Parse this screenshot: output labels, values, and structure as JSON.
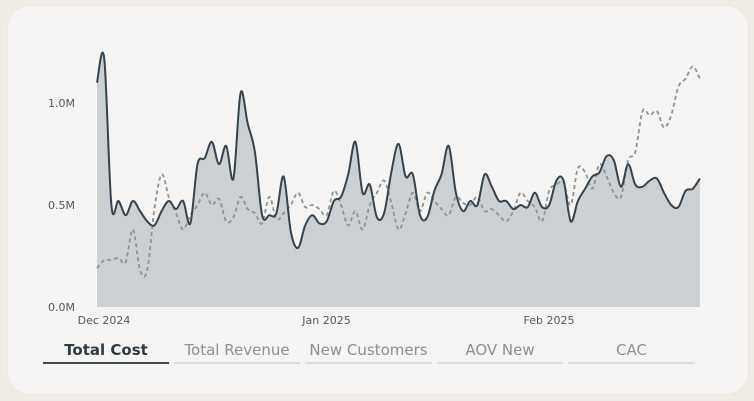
{
  "chart_data": {
    "type": "area",
    "title": "",
    "xlabel": "",
    "ylabel": "",
    "x_start": "2024-12-01",
    "x_end": "2025-03-01",
    "x_ticks": [
      {
        "date": "2024-12-01",
        "label": "Dec 2024"
      },
      {
        "date": "2025-01-01",
        "label": "Jan 2025"
      },
      {
        "date": "2025-02-01",
        "label": "Feb 2025"
      }
    ],
    "ylim": [
      0,
      1270000
    ],
    "y_ticks": [
      {
        "value": 0,
        "label": "0.0M"
      },
      {
        "value": 500000,
        "label": "0.5M"
      },
      {
        "value": 1000000,
        "label": "1.0M"
      }
    ],
    "grid": false,
    "series": [
      {
        "name": "",
        "style": "area-solid",
        "color": "#34444f",
        "fill": "#cdd0d3",
        "points": [
          [
            "2024-12-01",
            1100000
          ],
          [
            "2024-12-02",
            1220000
          ],
          [
            "2024-12-03",
            500000
          ],
          [
            "2024-12-04",
            520000
          ],
          [
            "2024-12-05",
            450000
          ],
          [
            "2024-12-06",
            520000
          ],
          [
            "2024-12-07",
            470000
          ],
          [
            "2024-12-08",
            420000
          ],
          [
            "2024-12-09",
            400000
          ],
          [
            "2024-12-10",
            470000
          ],
          [
            "2024-12-11",
            520000
          ],
          [
            "2024-12-12",
            480000
          ],
          [
            "2024-12-13",
            520000
          ],
          [
            "2024-12-14",
            410000
          ],
          [
            "2024-12-15",
            700000
          ],
          [
            "2024-12-16",
            730000
          ],
          [
            "2024-12-17",
            810000
          ],
          [
            "2024-12-18",
            700000
          ],
          [
            "2024-12-19",
            790000
          ],
          [
            "2024-12-20",
            630000
          ],
          [
            "2024-12-21",
            1050000
          ],
          [
            "2024-12-22",
            900000
          ],
          [
            "2024-12-23",
            760000
          ],
          [
            "2024-12-24",
            450000
          ],
          [
            "2024-12-25",
            450000
          ],
          [
            "2024-12-26",
            460000
          ],
          [
            "2024-12-27",
            640000
          ],
          [
            "2024-12-28",
            370000
          ],
          [
            "2024-12-29",
            290000
          ],
          [
            "2024-12-30",
            400000
          ],
          [
            "2024-12-31",
            450000
          ],
          [
            "2025-01-01",
            410000
          ],
          [
            "2025-01-02",
            420000
          ],
          [
            "2025-01-03",
            520000
          ],
          [
            "2025-01-04",
            540000
          ],
          [
            "2025-01-05",
            650000
          ],
          [
            "2025-01-06",
            810000
          ],
          [
            "2025-01-07",
            560000
          ],
          [
            "2025-01-08",
            600000
          ],
          [
            "2025-01-09",
            440000
          ],
          [
            "2025-01-10",
            460000
          ],
          [
            "2025-01-11",
            660000
          ],
          [
            "2025-01-12",
            800000
          ],
          [
            "2025-01-13",
            640000
          ],
          [
            "2025-01-14",
            650000
          ],
          [
            "2025-01-15",
            450000
          ],
          [
            "2025-01-16",
            440000
          ],
          [
            "2025-01-17",
            570000
          ],
          [
            "2025-01-18",
            650000
          ],
          [
            "2025-01-19",
            790000
          ],
          [
            "2025-01-20",
            560000
          ],
          [
            "2025-01-21",
            470000
          ],
          [
            "2025-01-22",
            520000
          ],
          [
            "2025-01-23",
            500000
          ],
          [
            "2025-01-24",
            650000
          ],
          [
            "2025-01-25",
            590000
          ],
          [
            "2025-01-26",
            520000
          ],
          [
            "2025-01-27",
            520000
          ],
          [
            "2025-01-28",
            480000
          ],
          [
            "2025-01-29",
            500000
          ],
          [
            "2025-01-30",
            490000
          ],
          [
            "2025-01-31",
            560000
          ],
          [
            "2025-02-01",
            490000
          ],
          [
            "2025-02-02",
            500000
          ],
          [
            "2025-02-03",
            620000
          ],
          [
            "2025-02-04",
            620000
          ],
          [
            "2025-02-05",
            420000
          ],
          [
            "2025-02-06",
            520000
          ],
          [
            "2025-02-07",
            580000
          ],
          [
            "2025-02-08",
            640000
          ],
          [
            "2025-02-09",
            660000
          ],
          [
            "2025-02-10",
            740000
          ],
          [
            "2025-02-11",
            720000
          ],
          [
            "2025-02-12",
            590000
          ],
          [
            "2025-02-13",
            700000
          ],
          [
            "2025-02-14",
            600000
          ],
          [
            "2025-02-15",
            590000
          ],
          [
            "2025-02-16",
            620000
          ],
          [
            "2025-02-17",
            630000
          ],
          [
            "2025-02-18",
            560000
          ],
          [
            "2025-02-19",
            500000
          ],
          [
            "2025-02-20",
            490000
          ],
          [
            "2025-02-21",
            570000
          ],
          [
            "2025-02-22",
            580000
          ],
          [
            "2025-02-23",
            630000
          ]
        ]
      },
      {
        "name": "",
        "style": "dashed",
        "color": "#8e9590",
        "points": [
          [
            "2024-12-01",
            190000
          ],
          [
            "2024-12-02",
            230000
          ],
          [
            "2024-12-03",
            230000
          ],
          [
            "2024-12-04",
            240000
          ],
          [
            "2024-12-05",
            220000
          ],
          [
            "2024-12-06",
            380000
          ],
          [
            "2024-12-07",
            180000
          ],
          [
            "2024-12-08",
            180000
          ],
          [
            "2024-12-09",
            480000
          ],
          [
            "2024-12-10",
            650000
          ],
          [
            "2024-12-11",
            540000
          ],
          [
            "2024-12-12",
            460000
          ],
          [
            "2024-12-13",
            380000
          ],
          [
            "2024-12-14",
            450000
          ],
          [
            "2024-12-15",
            500000
          ],
          [
            "2024-12-16",
            560000
          ],
          [
            "2024-12-17",
            500000
          ],
          [
            "2024-12-18",
            530000
          ],
          [
            "2024-12-19",
            420000
          ],
          [
            "2024-12-20",
            440000
          ],
          [
            "2024-12-21",
            540000
          ],
          [
            "2024-12-22",
            480000
          ],
          [
            "2024-12-23",
            460000
          ],
          [
            "2024-12-24",
            410000
          ],
          [
            "2024-12-25",
            540000
          ],
          [
            "2024-12-26",
            430000
          ],
          [
            "2024-12-27",
            460000
          ],
          [
            "2024-12-28",
            500000
          ],
          [
            "2024-12-29",
            560000
          ],
          [
            "2024-12-30",
            490000
          ],
          [
            "2024-12-31",
            500000
          ],
          [
            "2025-01-01",
            480000
          ],
          [
            "2025-01-02",
            450000
          ],
          [
            "2025-01-03",
            570000
          ],
          [
            "2025-01-04",
            500000
          ],
          [
            "2025-01-05",
            400000
          ],
          [
            "2025-01-06",
            470000
          ],
          [
            "2025-01-07",
            380000
          ],
          [
            "2025-01-08",
            500000
          ],
          [
            "2025-01-09",
            560000
          ],
          [
            "2025-01-10",
            620000
          ],
          [
            "2025-01-11",
            510000
          ],
          [
            "2025-01-12",
            380000
          ],
          [
            "2025-01-13",
            460000
          ],
          [
            "2025-01-14",
            560000
          ],
          [
            "2025-01-15",
            470000
          ],
          [
            "2025-01-16",
            560000
          ],
          [
            "2025-01-17",
            520000
          ],
          [
            "2025-01-18",
            480000
          ],
          [
            "2025-01-19",
            450000
          ],
          [
            "2025-01-20",
            540000
          ],
          [
            "2025-01-21",
            510000
          ],
          [
            "2025-01-22",
            500000
          ],
          [
            "2025-01-23",
            540000
          ],
          [
            "2025-01-24",
            470000
          ],
          [
            "2025-01-25",
            480000
          ],
          [
            "2025-01-26",
            450000
          ],
          [
            "2025-01-27",
            420000
          ],
          [
            "2025-01-28",
            470000
          ],
          [
            "2025-01-29",
            560000
          ],
          [
            "2025-01-30",
            520000
          ],
          [
            "2025-01-31",
            490000
          ],
          [
            "2025-02-01",
            420000
          ],
          [
            "2025-02-02",
            570000
          ],
          [
            "2025-02-03",
            600000
          ],
          [
            "2025-02-04",
            610000
          ],
          [
            "2025-02-05",
            500000
          ],
          [
            "2025-02-06",
            680000
          ],
          [
            "2025-02-07",
            660000
          ],
          [
            "2025-02-08",
            580000
          ],
          [
            "2025-02-09",
            700000
          ],
          [
            "2025-02-10",
            640000
          ],
          [
            "2025-02-11",
            560000
          ],
          [
            "2025-02-12",
            540000
          ],
          [
            "2025-02-13",
            720000
          ],
          [
            "2025-02-14",
            760000
          ],
          [
            "2025-02-15",
            960000
          ],
          [
            "2025-02-16",
            940000
          ],
          [
            "2025-02-17",
            960000
          ],
          [
            "2025-02-18",
            880000
          ],
          [
            "2025-02-19",
            940000
          ],
          [
            "2025-02-20",
            1080000
          ],
          [
            "2025-02-21",
            1120000
          ],
          [
            "2025-02-22",
            1180000
          ],
          [
            "2025-02-23",
            1120000
          ]
        ]
      }
    ]
  },
  "tabs": [
    {
      "label": "Total Cost",
      "active": true
    },
    {
      "label": "Total Revenue",
      "active": false
    },
    {
      "label": "New Customers",
      "active": false
    },
    {
      "label": "AOV New",
      "active": false
    },
    {
      "label": "CAC",
      "active": false
    }
  ]
}
